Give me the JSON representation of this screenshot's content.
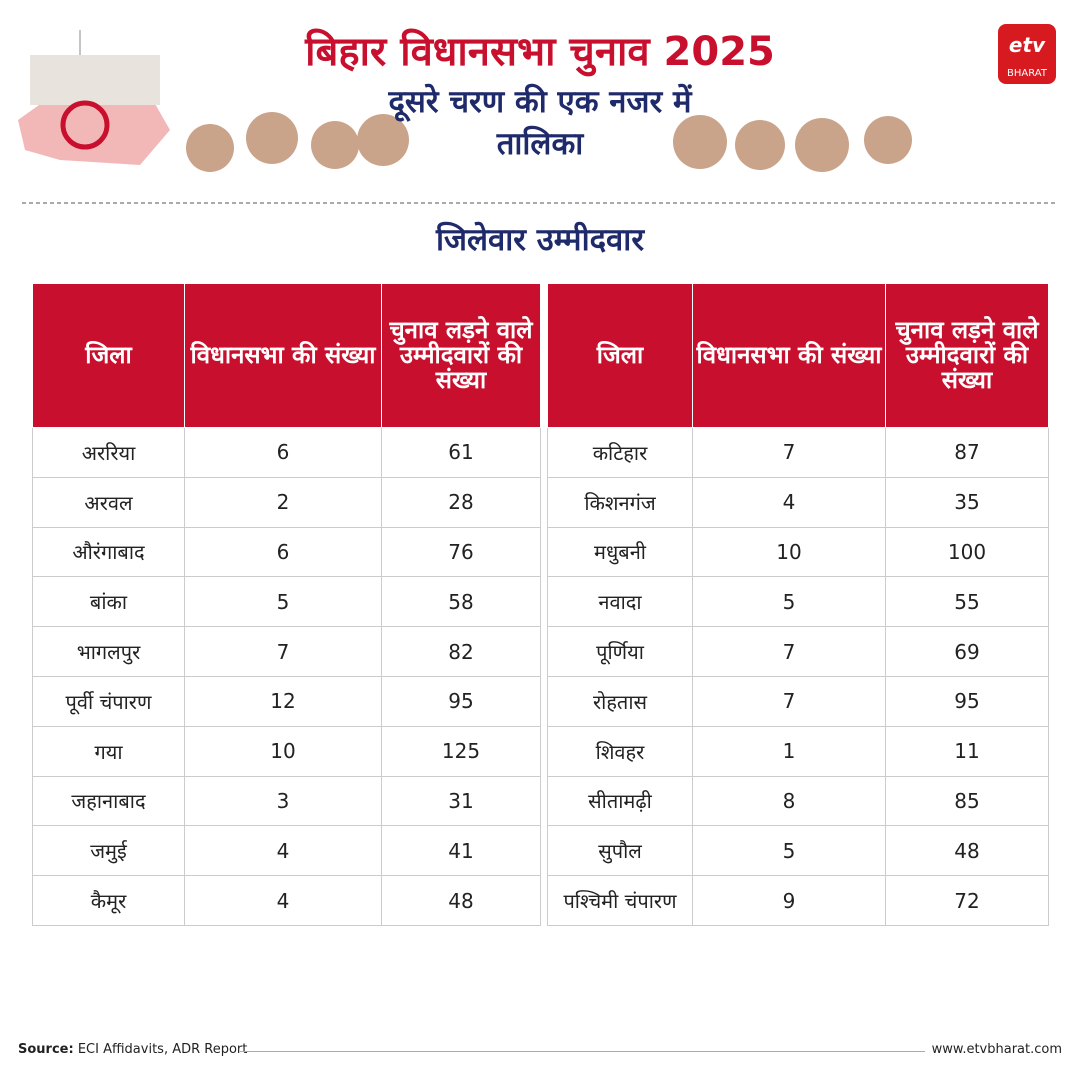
{
  "header": {
    "title": "बिहार विधानसभा चुनाव 2025",
    "subtitle_lines": [
      "दूसरे चरण की एक नजर में",
      "तालिका"
    ],
    "logo_text": "BHARAT"
  },
  "section_title": "जिलेवार उम्मीदवार",
  "tables": [
    {
      "headers": [
        "जिला",
        "विधानसभा की संख्या",
        "चुनाव लड़ने वाले उम्मीदवारों की संख्या"
      ],
      "rows": [
        [
          "अररिया",
          6,
          61
        ],
        [
          "अरवल",
          2,
          28
        ],
        [
          "औरंगाबाद",
          6,
          76
        ],
        [
          "बांका",
          5,
          58
        ],
        [
          "भागलपुर",
          7,
          82
        ],
        [
          "पूर्वी चंपारण",
          12,
          95
        ],
        [
          "गया",
          10,
          125
        ],
        [
          "जहानाबाद",
          3,
          31
        ],
        [
          "जमुई",
          4,
          41
        ],
        [
          "कैमूर",
          4,
          48
        ]
      ]
    },
    {
      "headers": [
        "जिला",
        "विधानसभा की संख्या",
        "चुनाव लड़ने वाले उम्मीदवारों की संख्या"
      ],
      "rows": [
        [
          "कटिहार",
          7,
          87
        ],
        [
          "किशनगंज",
          4,
          35
        ],
        [
          "मधुबनी",
          10,
          100
        ],
        [
          "नवादा",
          5,
          55
        ],
        [
          "पूर्णिया",
          7,
          69
        ],
        [
          "रोहतास",
          7,
          95
        ],
        [
          "शिवहर",
          1,
          11
        ],
        [
          "सीतामढ़ी",
          8,
          85
        ],
        [
          "सुपौल",
          5,
          48
        ],
        [
          "पश्चिमी चंपारण",
          9,
          72
        ]
      ]
    }
  ],
  "footer": {
    "source_label": "Source:",
    "source": "ECI Affidavits, ADR Report",
    "website": "www.etvbharat.com"
  }
}
